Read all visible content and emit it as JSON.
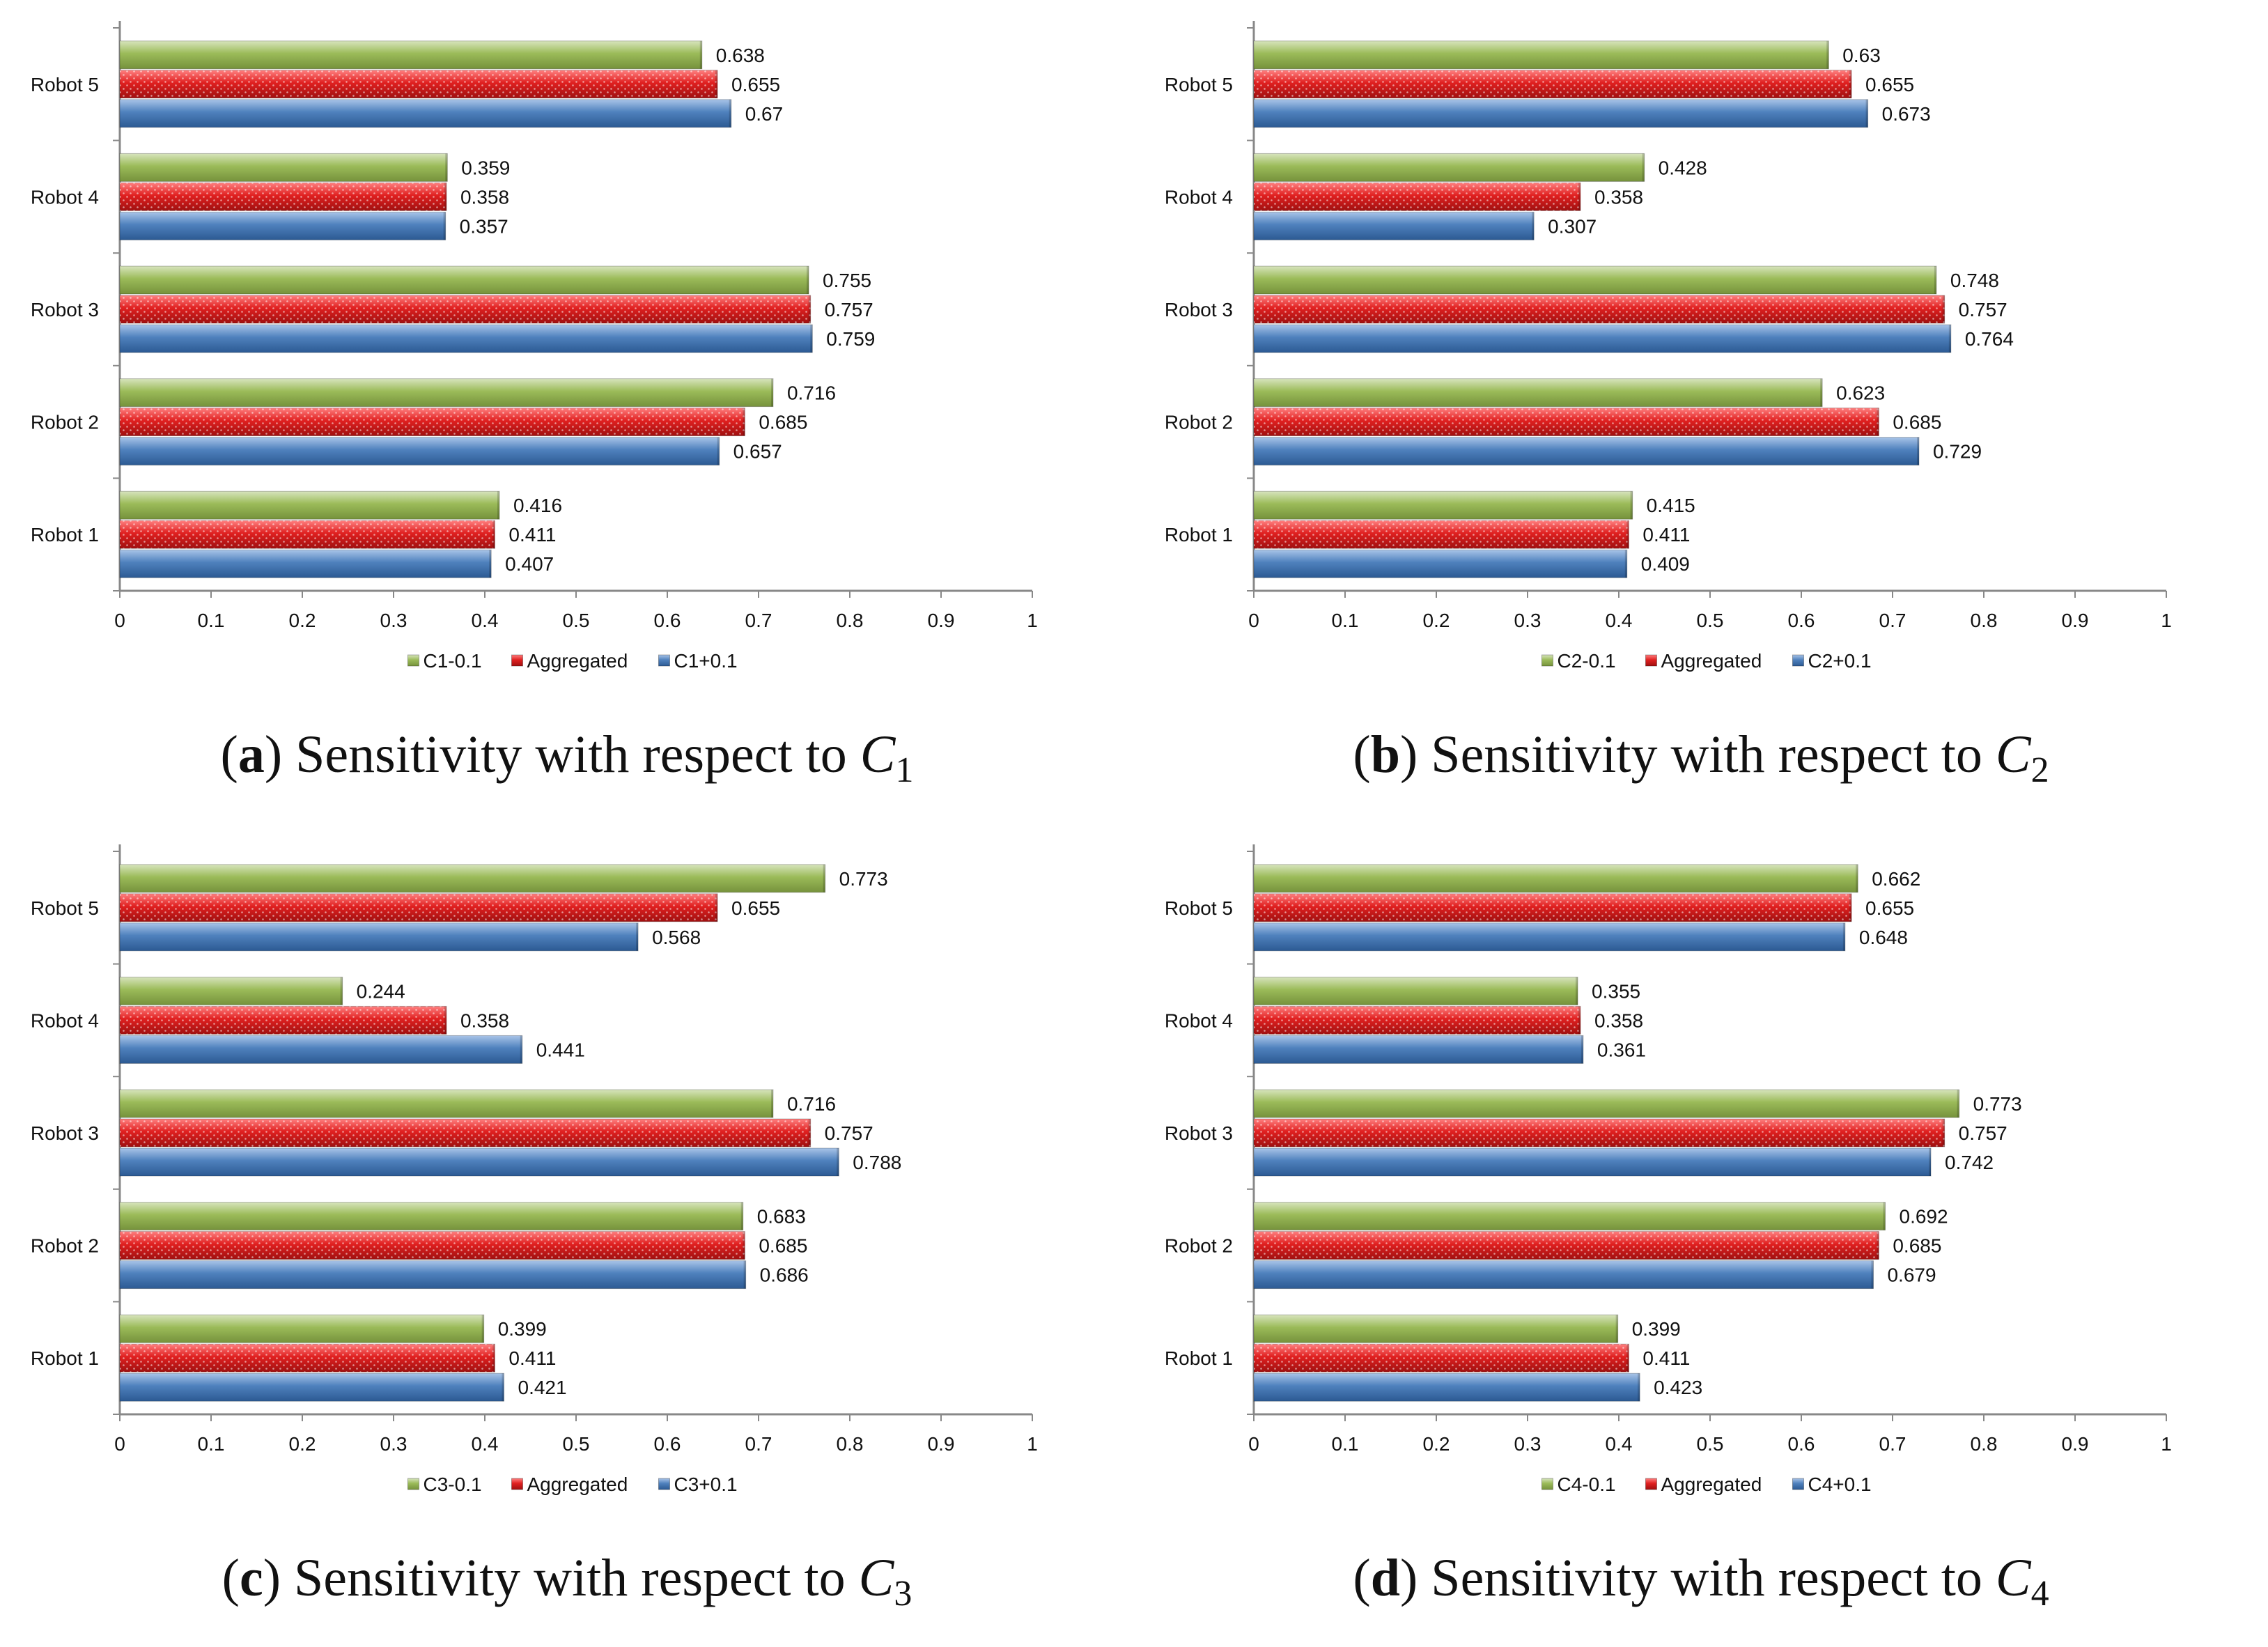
{
  "colors": {
    "green": "#9BBB59",
    "red": "#E02020",
    "blue": "#4F81BD",
    "axis": "#888888",
    "text": "#111111"
  },
  "chart_data": [
    {
      "type": "bar",
      "orientation": "horizontal",
      "categories": [
        "Robot 1",
        "Robot 2",
        "Robot 3",
        "Robot 4",
        "Robot 5"
      ],
      "series": [
        {
          "name": "C1-0.1",
          "values": [
            0.416,
            0.716,
            0.755,
            0.359,
            0.638
          ],
          "labels": [
            "0.416",
            "0.716",
            "0.755",
            "0.359",
            "0.638"
          ]
        },
        {
          "name": "Aggregated",
          "values": [
            0.411,
            0.685,
            0.757,
            0.358,
            0.655
          ],
          "labels": [
            "0.411",
            "0.685",
            "0.757",
            "0.358",
            "0.655"
          ]
        },
        {
          "name": "C1+0.1",
          "values": [
            0.407,
            0.657,
            0.759,
            0.357,
            0.67
          ],
          "labels": [
            "0.407",
            "0.657",
            "0.759",
            "0.357",
            "0.67"
          ]
        }
      ],
      "xlim": [
        0,
        1
      ],
      "xticks": [
        "0",
        "0.1",
        "0.2",
        "0.3",
        "0.4",
        "0.5",
        "0.6",
        "0.7",
        "0.8",
        "0.9",
        "1"
      ],
      "legend": "bottom",
      "caption": {
        "letter": "a",
        "text": ") Sensitivity with respect to ",
        "var": "C",
        "sub": "1"
      }
    },
    {
      "type": "bar",
      "orientation": "horizontal",
      "categories": [
        "Robot 1",
        "Robot 2",
        "Robot 3",
        "Robot 4",
        "Robot 5"
      ],
      "series": [
        {
          "name": "C2-0.1",
          "values": [
            0.415,
            0.623,
            0.748,
            0.428,
            0.63
          ],
          "labels": [
            "0.415",
            "0.623",
            "0.748",
            "0.428",
            "0.63"
          ]
        },
        {
          "name": "Aggregated",
          "values": [
            0.411,
            0.685,
            0.757,
            0.358,
            0.655
          ],
          "labels": [
            "0.411",
            "0.685",
            "0.757",
            "0.358",
            "0.655"
          ]
        },
        {
          "name": "C2+0.1",
          "values": [
            0.409,
            0.729,
            0.764,
            0.307,
            0.673
          ],
          "labels": [
            "0.409",
            "0.729",
            "0.764",
            "0.307",
            "0.673"
          ]
        }
      ],
      "xlim": [
        0,
        1
      ],
      "xticks": [
        "0",
        "0.1",
        "0.2",
        "0.3",
        "0.4",
        "0.5",
        "0.6",
        "0.7",
        "0.8",
        "0.9",
        "1"
      ],
      "legend": "bottom",
      "caption": {
        "letter": "b",
        "text": ") Sensitivity with respect to ",
        "var": "C",
        "sub": "2"
      }
    },
    {
      "type": "bar",
      "orientation": "horizontal",
      "categories": [
        "Robot 1",
        "Robot 2",
        "Robot 3",
        "Robot 4",
        "Robot 5"
      ],
      "series": [
        {
          "name": "C3-0.1",
          "values": [
            0.399,
            0.683,
            0.716,
            0.244,
            0.773
          ],
          "labels": [
            "0.399",
            "0.683",
            "0.716",
            "0.244",
            "0.773"
          ]
        },
        {
          "name": "Aggregated",
          "values": [
            0.411,
            0.685,
            0.757,
            0.358,
            0.655
          ],
          "labels": [
            "0.411",
            "0.685",
            "0.757",
            "0.358",
            "0.655"
          ]
        },
        {
          "name": "C3+0.1",
          "values": [
            0.421,
            0.686,
            0.788,
            0.441,
            0.568
          ],
          "labels": [
            "0.421",
            "0.686",
            "0.788",
            "0.441",
            "0.568"
          ]
        }
      ],
      "xlim": [
        0,
        1
      ],
      "xticks": [
        "0",
        "0.1",
        "0.2",
        "0.3",
        "0.4",
        "0.5",
        "0.6",
        "0.7",
        "0.8",
        "0.9",
        "1"
      ],
      "legend": "bottom",
      "caption": {
        "letter": "c",
        "text": ") Sensitivity with respect to ",
        "var": "C",
        "sub": "3"
      }
    },
    {
      "type": "bar",
      "orientation": "horizontal",
      "categories": [
        "Robot 1",
        "Robot 2",
        "Robot 3",
        "Robot 4",
        "Robot 5"
      ],
      "series": [
        {
          "name": "C4-0.1",
          "values": [
            0.399,
            0.692,
            0.773,
            0.355,
            0.662
          ],
          "labels": [
            "0.399",
            "0.692",
            "0.773",
            "0.355",
            "0.662"
          ]
        },
        {
          "name": "Aggregated",
          "values": [
            0.411,
            0.685,
            0.757,
            0.358,
            0.655
          ],
          "labels": [
            "0.411",
            "0.685",
            "0.757",
            "0.358",
            "0.655"
          ]
        },
        {
          "name": "C4+0.1",
          "values": [
            0.423,
            0.679,
            0.742,
            0.361,
            0.648
          ],
          "labels": [
            "0.423",
            "0.679",
            "0.742",
            "0.361",
            "0.648"
          ]
        }
      ],
      "xlim": [
        0,
        1
      ],
      "xticks": [
        "0",
        "0.1",
        "0.2",
        "0.3",
        "0.4",
        "0.5",
        "0.6",
        "0.7",
        "0.8",
        "0.9",
        "1"
      ],
      "legend": "bottom",
      "caption": {
        "letter": "d",
        "text": ") Sensitivity with respect to ",
        "var": "C",
        "sub": "4"
      }
    }
  ]
}
